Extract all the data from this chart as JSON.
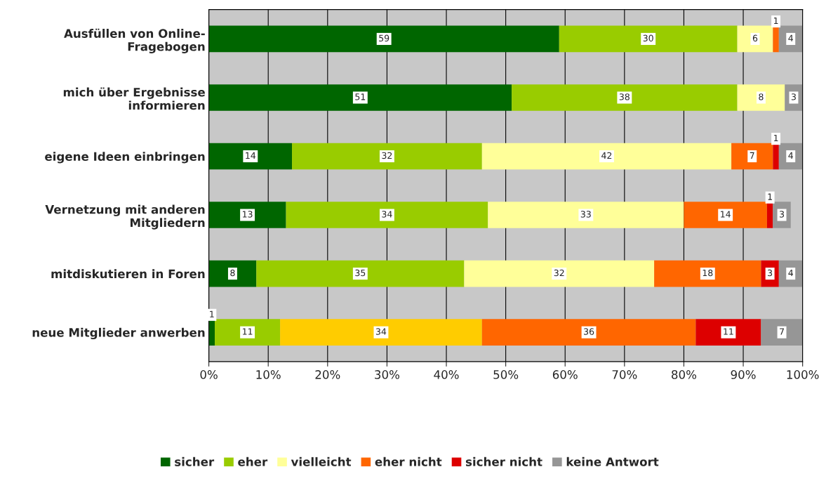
{
  "chart_data": {
    "type": "bar",
    "orientation": "horizontal",
    "stacked": true,
    "categories": [
      "Ausfüllen von Online-\nFragebogen",
      "mich über Ergebnisse\ninformieren",
      "eigene Ideen einbringen",
      "Vernetzung mit anderen\nMitgliedern",
      "mitdiskutieren in Foren",
      "neue Mitglieder anwerben"
    ],
    "series": [
      {
        "name": "sicher",
        "color": "#006600",
        "values": [
          59,
          51,
          14,
          13,
          8,
          1
        ]
      },
      {
        "name": "eher",
        "color": "#99cc00",
        "values": [
          30,
          38,
          32,
          34,
          35,
          11
        ]
      },
      {
        "name": "vielleicht",
        "color": "#ffff99",
        "colors": [
          "#ffff99",
          "#ffff99",
          "#ffff99",
          "#ffff99",
          "#ffff99",
          "#ffcc00"
        ],
        "values": [
          6,
          8,
          42,
          33,
          32,
          34
        ]
      },
      {
        "name": "eher nicht",
        "color": "#ff6600",
        "values": [
          1,
          null,
          7,
          14,
          18,
          36
        ]
      },
      {
        "name": "sicher nicht",
        "color": "#dd0000",
        "values": [
          null,
          null,
          1,
          1,
          3,
          11
        ]
      },
      {
        "name": "keine Antwort",
        "color": "#969696",
        "values": [
          4,
          3,
          4,
          3,
          4,
          7
        ]
      }
    ],
    "xlim": [
      0,
      100
    ],
    "xticks": [
      {
        "value": 0,
        "label": "0%"
      },
      {
        "value": 10,
        "label": "10%"
      },
      {
        "value": 20,
        "label": "20%"
      },
      {
        "value": 30,
        "label": "30%"
      },
      {
        "value": 40,
        "label": "40%"
      },
      {
        "value": 50,
        "label": "50%"
      },
      {
        "value": 60,
        "label": "60%"
      },
      {
        "value": 70,
        "label": "70%"
      },
      {
        "value": 80,
        "label": "80%"
      },
      {
        "value": 90,
        "label": "90%"
      },
      {
        "value": 100,
        "label": "100%"
      }
    ],
    "grid": "x",
    "legend": "bottom",
    "data_labels": true
  }
}
